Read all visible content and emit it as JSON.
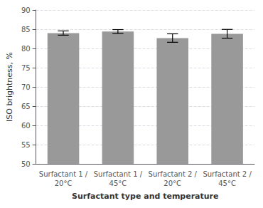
{
  "chart_data": {
    "type": "bar",
    "xlabel": "Surfactant type and temperature",
    "ylabel": "ISO brightness, %",
    "categories": [
      "Surfactant 1 /\n20°C",
      "Surfactant 1 /\n45°C",
      "Surfactant 2 /\n20°C",
      "Surfactant 2 /\n45°C"
    ],
    "values": [
      84.0,
      84.4,
      82.7,
      83.8
    ],
    "errors": [
      0.55,
      0.5,
      1.1,
      1.15
    ],
    "color": "#999999",
    "ylim": [
      50,
      90
    ],
    "yticks": [
      50,
      55,
      60,
      65,
      70,
      75,
      80,
      85,
      90
    ],
    "grid": true
  }
}
